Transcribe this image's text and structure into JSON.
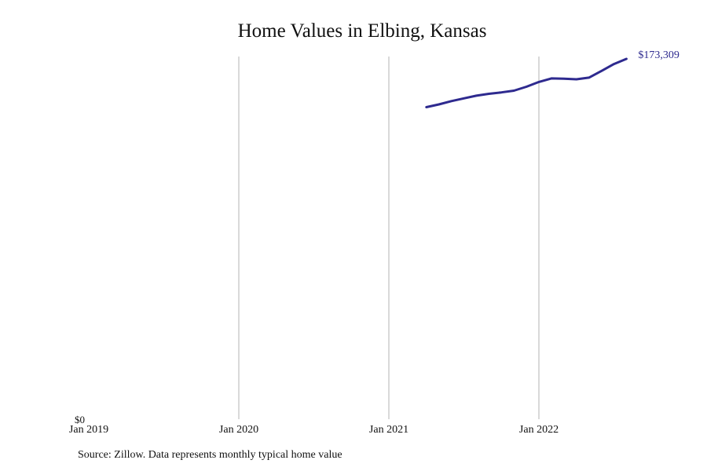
{
  "chart_data": {
    "type": "line",
    "title": "Home Values in Elbing, Kansas",
    "xlabel": "",
    "ylabel": "",
    "x_ticks": [
      "Jan 2019",
      "Jan 2020",
      "Jan 2021",
      "Jan 2022"
    ],
    "y_ticks": [
      "$0"
    ],
    "grid": "vertical",
    "x_range": [
      "2019-01",
      "2022-10"
    ],
    "ylim": [
      0,
      173309
    ],
    "series": [
      {
        "color": "#2e2a8f",
        "points": [
          {
            "x": "2021-04",
            "y": 150100
          },
          {
            "x": "2021-05",
            "y": 151400
          },
          {
            "x": "2021-06",
            "y": 153000
          },
          {
            "x": "2021-07",
            "y": 154300
          },
          {
            "x": "2021-08",
            "y": 155600
          },
          {
            "x": "2021-09",
            "y": 156500
          },
          {
            "x": "2021-10",
            "y": 157200
          },
          {
            "x": "2021-11",
            "y": 158000
          },
          {
            "x": "2021-12",
            "y": 159900
          },
          {
            "x": "2022-01",
            "y": 162200
          },
          {
            "x": "2022-02",
            "y": 163900
          },
          {
            "x": "2022-03",
            "y": 163800
          },
          {
            "x": "2022-04",
            "y": 163500
          },
          {
            "x": "2022-05",
            "y": 164300
          },
          {
            "x": "2022-06",
            "y": 167500
          },
          {
            "x": "2022-07",
            "y": 170800
          },
          {
            "x": "2022-08",
            "y": 173309
          }
        ]
      }
    ],
    "end_label": "$173,309"
  },
  "footer": {
    "source": "Source: Zillow. Data represents monthly typical home value"
  }
}
